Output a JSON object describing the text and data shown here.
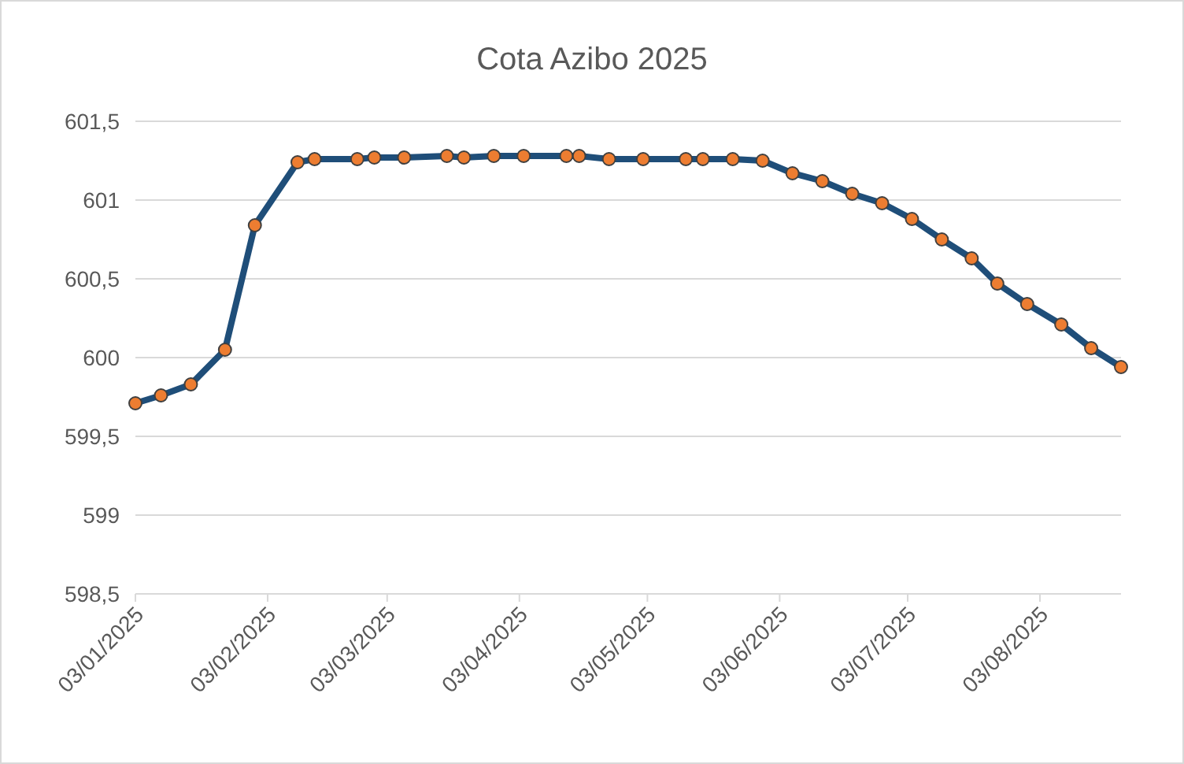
{
  "chart_data": {
    "type": "line",
    "title": "Cota Azibo 2025",
    "x": [
      "2025-01-03",
      "2025-01-09",
      "2025-01-16",
      "2025-01-24",
      "2025-01-31",
      "2025-02-10",
      "2025-02-14",
      "2025-02-24",
      "2025-02-28",
      "2025-03-07",
      "2025-03-17",
      "2025-03-21",
      "2025-03-28",
      "2025-04-04",
      "2025-04-14",
      "2025-04-17",
      "2025-04-24",
      "2025-05-02",
      "2025-05-12",
      "2025-05-16",
      "2025-05-23",
      "2025-05-30",
      "2025-06-06",
      "2025-06-13",
      "2025-06-20",
      "2025-06-27",
      "2025-07-04",
      "2025-07-11",
      "2025-07-18",
      "2025-07-24",
      "2025-07-31",
      "2025-08-08",
      "2025-08-15",
      "2025-08-22"
    ],
    "series": [
      {
        "color": "#1f4e79",
        "values": [
          599.71,
          599.76,
          599.83,
          600.05,
          600.84,
          601.24,
          601.26,
          601.26,
          601.27,
          601.27,
          601.28,
          601.27,
          601.28,
          601.28,
          601.28,
          601.28,
          601.26,
          601.26,
          601.26,
          601.26,
          601.26,
          601.25,
          601.17,
          601.12,
          601.04,
          600.98,
          600.88,
          600.75,
          600.63,
          600.47,
          600.34,
          600.21,
          600.06,
          599.94
        ]
      }
    ],
    "marker": "circle",
    "grid": "y",
    "xlim": [
      "2025-01-03",
      "2025-08-22"
    ],
    "xticks": [
      {
        "value": "2025-01-03",
        "label": "03/01/2025"
      },
      {
        "value": "2025-02-03",
        "label": "03/02/2025"
      },
      {
        "value": "2025-03-03",
        "label": "03/03/2025"
      },
      {
        "value": "2025-04-03",
        "label": "03/04/2025"
      },
      {
        "value": "2025-05-03",
        "label": "03/05/2025"
      },
      {
        "value": "2025-06-03",
        "label": "03/06/2025"
      },
      {
        "value": "2025-07-03",
        "label": "03/07/2025"
      },
      {
        "value": "2025-08-03",
        "label": "03/08/2025"
      }
    ],
    "ylim": [
      598.5,
      601.5
    ],
    "yticks": [
      {
        "value": 598.5,
        "label": "598,5"
      },
      599,
      {
        "value": 599.5,
        "label": "599,5"
      },
      600,
      {
        "value": 600.5,
        "label": "600,5"
      },
      601,
      {
        "value": 601.5,
        "label": "601,5"
      }
    ]
  }
}
